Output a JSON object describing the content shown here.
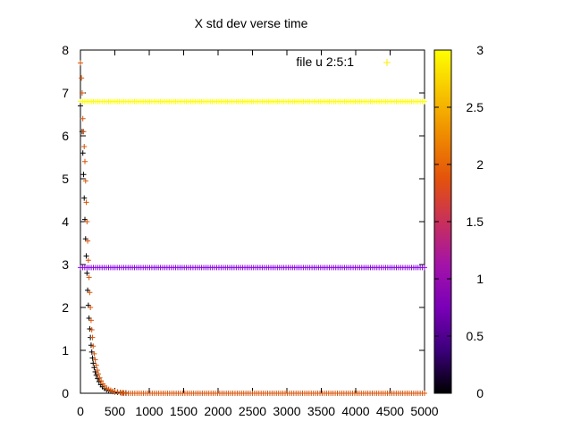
{
  "chart_data": {
    "type": "scatter",
    "title": "X std dev verse time",
    "xlabel": "",
    "ylabel": "",
    "xlim": [
      0,
      5000
    ],
    "ylim": [
      0,
      8
    ],
    "x_ticks": [
      0,
      500,
      1000,
      1500,
      2000,
      2500,
      3000,
      3500,
      4000,
      4500,
      5000
    ],
    "y_ticks": [
      0,
      1,
      2,
      3,
      4,
      5,
      6,
      7,
      8
    ],
    "grid": false,
    "legend_position": "top-right",
    "legend": [
      {
        "label": "file u 2:5:1",
        "marker": "+",
        "color": "#ffee00"
      }
    ],
    "colorbar": {
      "range": [
        0,
        3
      ],
      "ticks": [
        "0",
        "0.5",
        "1",
        "1.5",
        "2",
        "2.5",
        "3"
      ],
      "palette": [
        "#000000",
        "#3b007a",
        "#7a00b8",
        "#a313a8",
        "#c8305a",
        "#e4520c",
        "#ef8a00",
        "#f7c400",
        "#ffff00"
      ]
    },
    "series": [
      {
        "color_value": 0,
        "color": "#000000",
        "marker": "+",
        "points": [
          [
            0,
            6.7
          ],
          [
            25,
            6.1
          ],
          [
            35,
            5.6
          ],
          [
            45,
            5.1
          ],
          [
            55,
            4.55
          ],
          [
            65,
            4.05
          ],
          [
            75,
            3.6
          ],
          [
            85,
            3.2
          ],
          [
            95,
            2.8
          ],
          [
            105,
            2.4
          ],
          [
            115,
            2.05
          ],
          [
            125,
            1.75
          ],
          [
            135,
            1.5
          ],
          [
            145,
            1.3
          ],
          [
            155,
            1.12
          ],
          [
            165,
            0.96
          ],
          [
            175,
            0.82
          ],
          [
            185,
            0.7
          ],
          [
            200,
            0.6
          ],
          [
            215,
            0.5
          ],
          [
            230,
            0.42
          ],
          [
            250,
            0.34
          ],
          [
            270,
            0.27
          ],
          [
            295,
            0.2
          ],
          [
            320,
            0.15
          ],
          [
            350,
            0.11
          ],
          [
            380,
            0.08
          ],
          [
            410,
            0.06
          ],
          [
            440,
            0.05
          ],
          [
            470,
            0.04
          ],
          [
            500,
            0.03
          ],
          [
            540,
            0.02
          ],
          [
            580,
            0.015
          ],
          [
            620,
            0.01
          ],
          [
            660,
            0.008
          ]
        ]
      },
      {
        "color_value": 2,
        "color": "#d8550a",
        "marker": "+",
        "points": [
          [
            0,
            7.7
          ],
          [
            15,
            7.35
          ],
          [
            25,
            7.0
          ],
          [
            35,
            6.4
          ],
          [
            45,
            6.1
          ],
          [
            55,
            5.75
          ],
          [
            65,
            5.4
          ],
          [
            75,
            4.95
          ],
          [
            85,
            4.45
          ],
          [
            95,
            4.0
          ],
          [
            105,
            3.55
          ],
          [
            115,
            3.1
          ],
          [
            125,
            2.7
          ],
          [
            135,
            2.35
          ],
          [
            145,
            2.0
          ],
          [
            155,
            1.7
          ],
          [
            165,
            1.48
          ],
          [
            175,
            1.3
          ],
          [
            185,
            1.1
          ],
          [
            200,
            0.92
          ],
          [
            215,
            0.78
          ],
          [
            230,
            0.65
          ],
          [
            245,
            0.54
          ],
          [
            260,
            0.45
          ],
          [
            280,
            0.36
          ],
          [
            300,
            0.29
          ],
          [
            325,
            0.22
          ],
          [
            350,
            0.17
          ],
          [
            380,
            0.12
          ],
          [
            410,
            0.09
          ],
          [
            440,
            0.07
          ],
          [
            470,
            0.05
          ],
          [
            500,
            0.04
          ],
          [
            540,
            0.03
          ],
          [
            580,
            0.02
          ],
          [
            620,
            0.015
          ],
          [
            660,
            0.01
          ]
        ]
      }
    ],
    "bands": [
      {
        "color_value": 3,
        "color": "#ffff00",
        "y": 6.8,
        "x_range": [
          0,
          5000
        ],
        "n_points": 160
      },
      {
        "color_value": 1,
        "color": "#8a0ae0",
        "y": 2.93,
        "x_range": [
          0,
          5000
        ],
        "n_points": 160
      },
      {
        "color_value": 2,
        "color": "#d8550a",
        "y": 0.0,
        "x_range": [
          600,
          5000
        ],
        "n_points": 140
      }
    ]
  }
}
